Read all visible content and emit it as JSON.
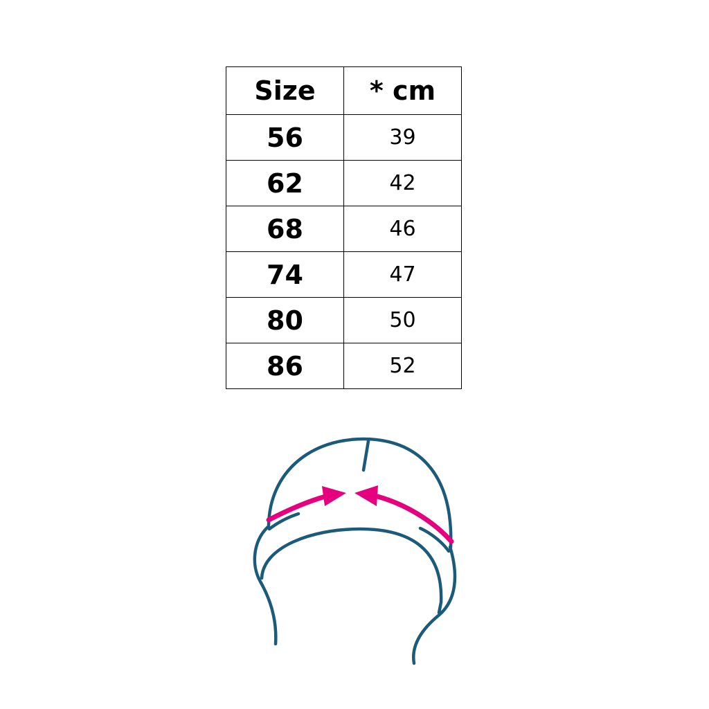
{
  "table": {
    "headers": [
      "Size",
      "* cm"
    ],
    "rows": [
      {
        "size": "56",
        "cm": "39"
      },
      {
        "size": "62",
        "cm": "42"
      },
      {
        "size": "68",
        "cm": "46"
      },
      {
        "size": "74",
        "cm": "47"
      },
      {
        "size": "80",
        "cm": "50"
      },
      {
        "size": "86",
        "cm": "52"
      }
    ]
  },
  "illustration": {
    "icon": "hat-head-circumference-icon",
    "line_color": "#1b5a78",
    "arrow_color": "#e5007d"
  }
}
